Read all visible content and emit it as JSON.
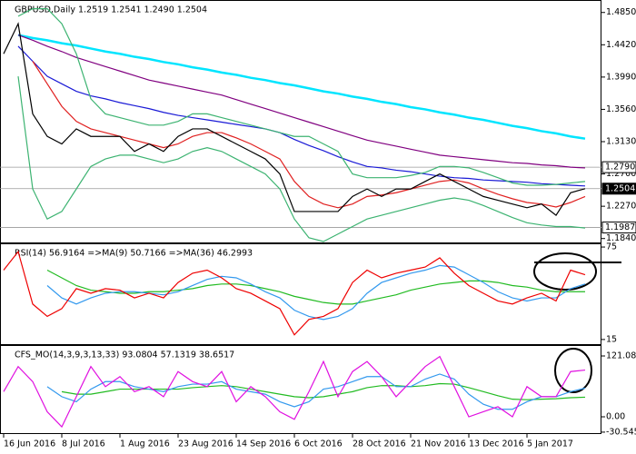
{
  "chart_data": [
    {
      "type": "line",
      "title": "GBPUSD,Daily  1.2519 1.2541 1.2490 1.2504",
      "ylim": [
        1.1776,
        1.5004
      ],
      "yticks": [
        {
          "value": 1.485,
          "label": "1.4850"
        },
        {
          "value": 1.442,
          "label": "1.4420"
        },
        {
          "value": 1.399,
          "label": "1.3990"
        },
        {
          "value": 1.356,
          "label": "1.3560"
        },
        {
          "value": 1.313,
          "label": "1.3130"
        },
        {
          "value": 1.27,
          "label": "1.2700"
        },
        {
          "value": 1.227,
          "label": "1.2270"
        },
        {
          "value": 1.184,
          "label": "1.1840"
        }
      ],
      "marked_levels": [
        {
          "value": 1.279,
          "label": "1.2790"
        },
        1.2504,
        1.1987
      ],
      "series": [
        {
          "color": "#00e5ff",
          "values": [
            null,
            1.455,
            1.451,
            1.448,
            1.444,
            1.441,
            1.437,
            1.433,
            1.43,
            1.426,
            1.423,
            1.419,
            1.416,
            1.412,
            1.409,
            1.405,
            1.402,
            1.398,
            1.395,
            1.391,
            1.388,
            1.384,
            1.38,
            1.377,
            1.373,
            1.37,
            1.366,
            1.363,
            1.359,
            1.356,
            1.352,
            1.349,
            1.345,
            1.342,
            1.338,
            1.334,
            1.331,
            1.327,
            1.324,
            1.32,
            1.317
          ]
        },
        {
          "color": "#800080",
          "values": [
            null,
            1.455,
            1.448,
            1.44,
            1.433,
            1.425,
            1.419,
            1.413,
            1.407,
            1.401,
            1.395,
            1.391,
            1.387,
            1.383,
            1.379,
            1.375,
            1.369,
            1.363,
            1.357,
            1.351,
            1.345,
            1.339,
            1.333,
            1.327,
            1.321,
            1.315,
            1.311,
            1.307,
            1.303,
            1.299,
            1.295,
            1.293,
            1.291,
            1.289,
            1.287,
            1.285,
            1.284,
            1.282,
            1.281,
            1.279,
            1.278
          ]
        },
        {
          "color": "#1a1ad6",
          "values": [
            null,
            1.44,
            1.42,
            1.4,
            1.39,
            1.38,
            1.374,
            1.37,
            1.365,
            1.361,
            1.357,
            1.352,
            1.348,
            1.345,
            1.342,
            1.339,
            1.336,
            1.333,
            1.33,
            1.325,
            1.316,
            1.308,
            1.301,
            1.293,
            1.286,
            1.28,
            1.278,
            1.275,
            1.273,
            1.27,
            1.267,
            1.265,
            1.264,
            1.262,
            1.261,
            1.26,
            1.259,
            1.257,
            1.256,
            1.255,
            1.254
          ]
        },
        {
          "color": "#3cb371",
          "values": [
            null,
            1.48,
            1.49,
            1.49,
            1.47,
            1.43,
            1.37,
            1.35,
            1.345,
            1.34,
            1.335,
            1.335,
            1.34,
            1.35,
            1.35,
            1.345,
            1.34,
            1.335,
            1.33,
            1.325,
            1.32,
            1.32,
            1.31,
            1.3,
            1.27,
            1.265,
            1.265,
            1.265,
            1.268,
            1.272,
            1.28,
            1.28,
            1.278,
            1.272,
            1.265,
            1.258,
            1.255,
            1.255,
            1.256,
            1.258,
            1.26
          ]
        },
        {
          "color": "#3cb371",
          "values": [
            null,
            1.4,
            1.25,
            1.21,
            1.22,
            1.25,
            1.28,
            1.29,
            1.295,
            1.295,
            1.29,
            1.285,
            1.29,
            1.3,
            1.305,
            1.3,
            1.29,
            1.28,
            1.27,
            1.25,
            1.21,
            1.185,
            1.18,
            1.19,
            1.2,
            1.21,
            1.215,
            1.22,
            1.225,
            1.23,
            1.235,
            1.238,
            1.235,
            1.228,
            1.22,
            1.212,
            1.205,
            1.202,
            1.2,
            1.2,
            1.198
          ]
        },
        {
          "color": "#e02020",
          "values": [
            null,
            null,
            1.42,
            1.39,
            1.36,
            1.34,
            1.33,
            1.325,
            1.32,
            1.315,
            1.31,
            1.305,
            1.31,
            1.32,
            1.325,
            1.325,
            1.318,
            1.31,
            1.3,
            1.29,
            1.26,
            1.24,
            1.23,
            1.225,
            1.23,
            1.24,
            1.242,
            1.245,
            1.25,
            1.255,
            1.26,
            1.262,
            1.258,
            1.25,
            1.243,
            1.237,
            1.232,
            1.23,
            1.226,
            1.232,
            1.24
          ]
        },
        {
          "color": "#000000",
          "values": [
            1.43,
            1.47,
            1.35,
            1.32,
            1.31,
            1.33,
            1.32,
            1.32,
            1.32,
            1.3,
            1.31,
            1.3,
            1.32,
            1.33,
            1.33,
            1.32,
            1.31,
            1.3,
            1.29,
            1.27,
            1.22,
            1.22,
            1.22,
            1.22,
            1.24,
            1.25,
            1.24,
            1.25,
            1.25,
            1.26,
            1.27,
            1.26,
            1.25,
            1.24,
            1.235,
            1.23,
            1.225,
            1.23,
            1.215,
            1.245,
            1.2504
          ]
        }
      ]
    },
    {
      "type": "line",
      "title": "RSI(14) 56.9164 =>MA(9) 50.7166 =>MA(36) 46.2993",
      "ylim": [
        11.4,
        76.8
      ],
      "yticks": [
        75,
        15
      ],
      "series": [
        {
          "color": "#22bb22",
          "values": [
            null,
            null,
            null,
            60,
            55,
            50,
            47,
            46,
            45,
            45,
            46,
            46,
            47,
            48,
            50,
            51,
            51,
            50,
            48,
            46,
            43,
            41,
            39,
            38,
            38,
            40,
            42,
            44,
            47,
            49,
            51,
            52,
            53,
            53,
            52,
            50,
            49,
            47,
            46,
            46,
            46
          ]
        },
        {
          "color": "#3399ee",
          "values": [
            null,
            null,
            null,
            50,
            42,
            38,
            42,
            45,
            46,
            46,
            45,
            44,
            46,
            50,
            54,
            56,
            55,
            51,
            46,
            42,
            34,
            30,
            28,
            30,
            35,
            45,
            52,
            55,
            58,
            60,
            63,
            62,
            57,
            52,
            46,
            42,
            40,
            42,
            42,
            48,
            51
          ]
        },
        {
          "color": "#ee0000",
          "values": [
            60,
            72,
            38,
            30,
            35,
            48,
            45,
            48,
            47,
            42,
            45,
            42,
            52,
            58,
            60,
            55,
            48,
            45,
            40,
            35,
            18,
            28,
            30,
            35,
            52,
            60,
            55,
            58,
            60,
            62,
            68,
            58,
            50,
            45,
            40,
            38,
            42,
            45,
            40,
            60,
            57
          ]
        }
      ]
    },
    {
      "type": "line",
      "title": "CFS_MO(14,3,9,3,13,33) 93.0804 57.1319 38.6517",
      "ylim": [
        -34.3,
        141
      ],
      "yticks": [
        121.0894,
        {
          "value": 0,
          "label": "0.00"
        },
        -30.5452
      ],
      "categories": [
        "16 Jun 2016",
        null,
        null,
        null,
        "8 Jul 2016",
        null,
        null,
        null,
        "1 Aug 2016",
        null,
        null,
        null,
        "23 Aug 2016",
        null,
        null,
        null,
        "14 Sep 2016",
        null,
        null,
        null,
        "6 Oct 2016",
        null,
        null,
        null,
        "28 Oct 2016",
        null,
        null,
        null,
        "21 Nov 2016",
        null,
        null,
        null,
        "13 Dec 2016",
        null,
        null,
        null,
        "5 Jan 2017",
        null,
        null,
        null,
        null
      ],
      "series": [
        {
          "color": "#22bb22",
          "values": [
            null,
            null,
            null,
            null,
            50,
            45,
            45,
            50,
            55,
            55,
            55,
            55,
            55,
            58,
            60,
            62,
            60,
            55,
            50,
            45,
            40,
            38,
            40,
            45,
            50,
            58,
            62,
            62,
            60,
            62,
            66,
            65,
            58,
            50,
            42,
            35,
            34,
            35,
            36,
            38,
            39
          ]
        },
        {
          "color": "#3399ee",
          "values": [
            null,
            null,
            null,
            60,
            40,
            30,
            55,
            70,
            70,
            60,
            55,
            50,
            60,
            65,
            65,
            70,
            55,
            50,
            45,
            30,
            20,
            30,
            55,
            60,
            70,
            80,
            80,
            60,
            60,
            75,
            85,
            75,
            45,
            25,
            15,
            15,
            30,
            40,
            40,
            50,
            57
          ]
        },
        {
          "color": "#e010e0",
          "values": [
            50,
            100,
            70,
            10,
            -20,
            40,
            100,
            60,
            80,
            50,
            60,
            40,
            90,
            70,
            60,
            90,
            30,
            60,
            40,
            10,
            -5,
            50,
            110,
            40,
            90,
            110,
            80,
            40,
            70,
            100,
            120,
            60,
            0,
            10,
            20,
            0,
            60,
            40,
            40,
            90,
            93
          ]
        }
      ]
    }
  ]
}
